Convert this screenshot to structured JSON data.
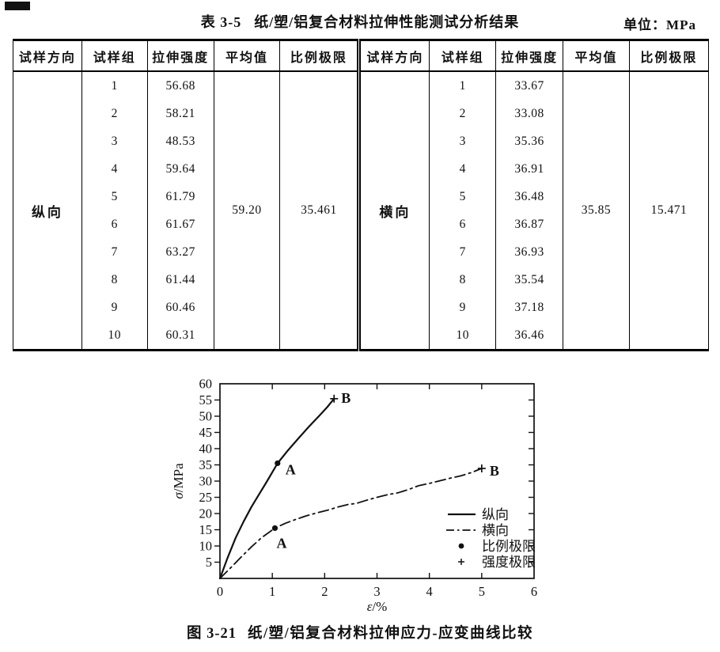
{
  "document": {
    "table_label": "表 3-5",
    "table_title": "纸/塑/铝复合材料拉伸性能测试分析结果",
    "unit_label": "单位：MPa",
    "figure_label": "图 3-21",
    "figure_title": "纸/塑/铝复合材料拉伸应力-应变曲线比较"
  },
  "table": {
    "headers": [
      "试样方向",
      "试样组",
      "拉伸强度",
      "平均值",
      "比例极限"
    ],
    "left": {
      "direction": "纵向",
      "groups": [
        "1",
        "2",
        "3",
        "4",
        "5",
        "6",
        "7",
        "8",
        "9",
        "10"
      ],
      "strengths": [
        "56.68",
        "58.21",
        "48.53",
        "59.64",
        "61.79",
        "61.67",
        "63.27",
        "61.44",
        "60.46",
        "60.31"
      ],
      "average": "59.20",
      "proportional_limit": "35.461"
    },
    "right": {
      "direction": "横向",
      "groups": [
        "1",
        "2",
        "3",
        "4",
        "5",
        "6",
        "7",
        "8",
        "9",
        "10"
      ],
      "strengths": [
        "33.67",
        "33.08",
        "35.36",
        "36.91",
        "36.48",
        "36.87",
        "36.93",
        "35.54",
        "37.18",
        "36.46"
      ],
      "average": "35.85",
      "proportional_limit": "15.471"
    }
  },
  "chart_data": {
    "type": "line",
    "title": "",
    "xlabel": "ε/%",
    "ylabel": "σ/MPa",
    "xlim": [
      0,
      6
    ],
    "ylim": [
      0,
      60
    ],
    "xticks": [
      0,
      1,
      2,
      3,
      4,
      5,
      6
    ],
    "yticks": [
      5,
      10,
      15,
      20,
      25,
      30,
      35,
      40,
      45,
      50,
      55,
      60
    ],
    "grid": false,
    "legend_position": "inside lower right",
    "line_color": "#111111",
    "series": [
      {
        "name": "纵向",
        "line": "solid",
        "points": [
          [
            0,
            0
          ],
          [
            0.15,
            6.5
          ],
          [
            0.3,
            12.5
          ],
          [
            0.45,
            17.5
          ],
          [
            0.6,
            22
          ],
          [
            0.75,
            26
          ],
          [
            0.9,
            30
          ],
          [
            1.1,
            35.5
          ],
          [
            1.3,
            39.5
          ],
          [
            1.5,
            43.2
          ],
          [
            1.7,
            46.8
          ],
          [
            1.9,
            50.2
          ],
          [
            2.05,
            52.8
          ],
          [
            2.18,
            55.4
          ]
        ],
        "proportional_limit": {
          "x": 1.1,
          "y": 35.5,
          "label": "A"
        },
        "strength_limit": {
          "x": 2.18,
          "y": 55.4,
          "label": "B"
        }
      },
      {
        "name": "横向",
        "line": "dashdot",
        "points": [
          [
            0,
            0
          ],
          [
            0.2,
            3.2
          ],
          [
            0.4,
            6.5
          ],
          [
            0.6,
            9.7
          ],
          [
            0.8,
            12.6
          ],
          [
            1.05,
            15.5
          ],
          [
            1.25,
            17
          ],
          [
            1.45,
            18.2
          ],
          [
            1.65,
            19.3
          ],
          [
            1.85,
            20.2
          ],
          [
            2.05,
            21
          ],
          [
            2.25,
            22
          ],
          [
            2.45,
            22.8
          ],
          [
            2.6,
            23.1
          ],
          [
            2.8,
            24.1
          ],
          [
            3.0,
            25
          ],
          [
            3.2,
            25.8
          ],
          [
            3.4,
            26.4
          ],
          [
            3.6,
            27.4
          ],
          [
            3.8,
            28.6
          ],
          [
            4.0,
            29.3
          ],
          [
            4.2,
            30.1
          ],
          [
            4.4,
            30.9
          ],
          [
            4.6,
            31.6
          ],
          [
            4.8,
            32.6
          ],
          [
            5.0,
            33.9
          ]
        ],
        "proportional_limit": {
          "x": 1.05,
          "y": 15.5,
          "label": "A"
        },
        "strength_limit": {
          "x": 5.0,
          "y": 33.9,
          "label": "B"
        }
      }
    ],
    "legend": [
      {
        "symbol": "solid-line",
        "label": "纵向"
      },
      {
        "symbol": "dashdot-line",
        "label": "横向"
      },
      {
        "symbol": "dot",
        "label": "比例极限"
      },
      {
        "symbol": "plus",
        "label": "强度极限"
      }
    ]
  }
}
